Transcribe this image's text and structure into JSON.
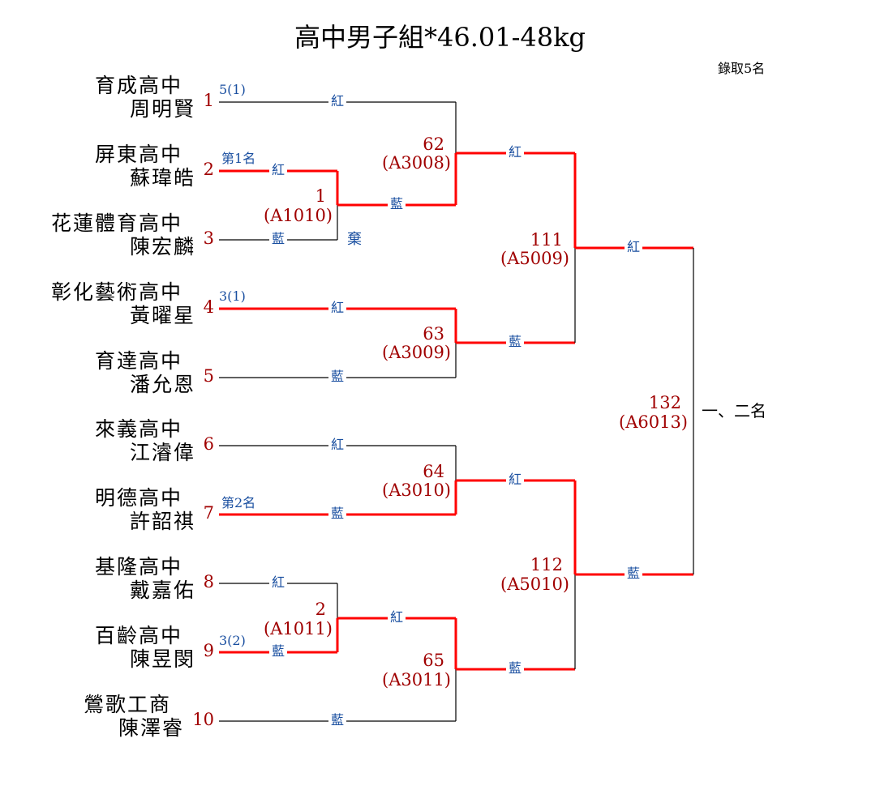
{
  "title": "高中男子組*46.01-48kg",
  "note": "錄取5名",
  "players": [
    {
      "seed": "1",
      "school": "育成高中",
      "name": "周明賢"
    },
    {
      "seed": "2",
      "school": "屏東高中",
      "name": "蘇瑋皓"
    },
    {
      "seed": "3",
      "school": "花蓮體育高中",
      "name": "陳宏麟"
    },
    {
      "seed": "4",
      "school": "彰化藝術高中",
      "name": "黃曜星"
    },
    {
      "seed": "5",
      "school": "育達高中",
      "name": "潘允恩"
    },
    {
      "seed": "6",
      "school": "來義高中",
      "name": "江濬偉"
    },
    {
      "seed": "7",
      "school": "明德高中",
      "name": "許韶祺"
    },
    {
      "seed": "8",
      "school": "基隆高中",
      "name": "戴嘉佑"
    },
    {
      "seed": "9",
      "school": "百齡高中",
      "name": "陳昱閔"
    },
    {
      "seed": "10",
      "school": "鶯歌工商",
      "name": "陳澤睿"
    }
  ],
  "annotations": {
    "p1": "5(1)",
    "p2": "第1名",
    "p4": "3(1)",
    "p7": "第2名",
    "p9": "3(2)",
    "forfeit": "棄"
  },
  "corners": {
    "red": "紅",
    "blue": "藍"
  },
  "matches": {
    "m1": {
      "num": "1",
      "code": "(A1010)"
    },
    "m2": {
      "num": "2",
      "code": "(A1011)"
    },
    "m62": {
      "num": "62",
      "code": "(A3008)"
    },
    "m63": {
      "num": "63",
      "code": "(A3009)"
    },
    "m64": {
      "num": "64",
      "code": "(A3010)"
    },
    "m65": {
      "num": "65",
      "code": "(A3011)"
    },
    "m111": {
      "num": "111",
      "code": "(A5009)"
    },
    "m112": {
      "num": "112",
      "code": "(A5010)"
    },
    "m132": {
      "num": "132",
      "code": "(A6013)"
    }
  },
  "final_label": "一、二名",
  "colors": {
    "winner_line": "#ff0000",
    "line": "#000000",
    "seed": "#a00000",
    "corner": "#1a4fa0"
  }
}
